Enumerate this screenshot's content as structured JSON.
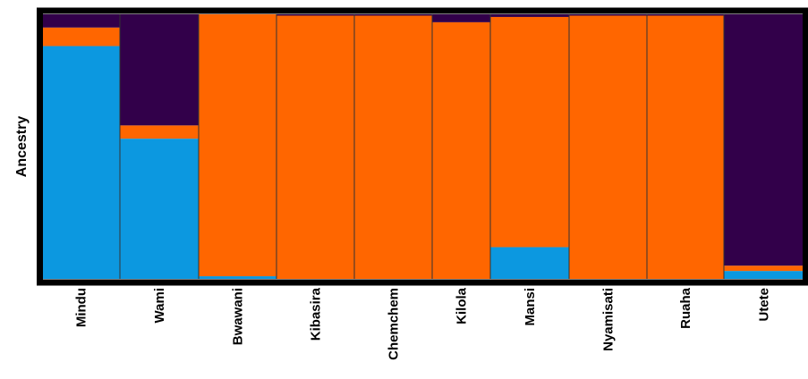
{
  "chart_data": {
    "type": "bar",
    "subtype": "stacked-100-percent-admixture",
    "title": "",
    "xlabel": "",
    "ylabel": "Ancestry",
    "ylim": [
      0,
      1
    ],
    "grid": false,
    "legend": "none",
    "frame_color": "#000000",
    "separator_color": "#333333",
    "clusters": [
      {
        "id": "blue",
        "color": "#0C98E0"
      },
      {
        "id": "orange",
        "color": "#FF6600"
      },
      {
        "id": "purple",
        "color": "#32004A"
      }
    ],
    "categories": [
      "Mindu",
      "Wami",
      "Bwawani",
      "Kibasira",
      "Chemchem",
      "Kilola",
      "Mansi",
      "Nyamisati",
      "Ruaha",
      "Utete"
    ],
    "series": [
      {
        "cluster": "blue",
        "values": [
          0.88,
          0.53,
          0.01,
          0.0,
          0.0,
          0.0,
          0.12,
          0.0,
          0.0,
          0.03
        ]
      },
      {
        "cluster": "orange",
        "values": [
          0.07,
          0.05,
          0.99,
          0.995,
          0.995,
          0.97,
          0.87,
          0.995,
          0.995,
          0.02
        ]
      },
      {
        "cluster": "purple",
        "values": [
          0.05,
          0.42,
          0.0,
          0.005,
          0.005,
          0.03,
          0.01,
          0.005,
          0.005,
          0.95
        ]
      }
    ]
  }
}
